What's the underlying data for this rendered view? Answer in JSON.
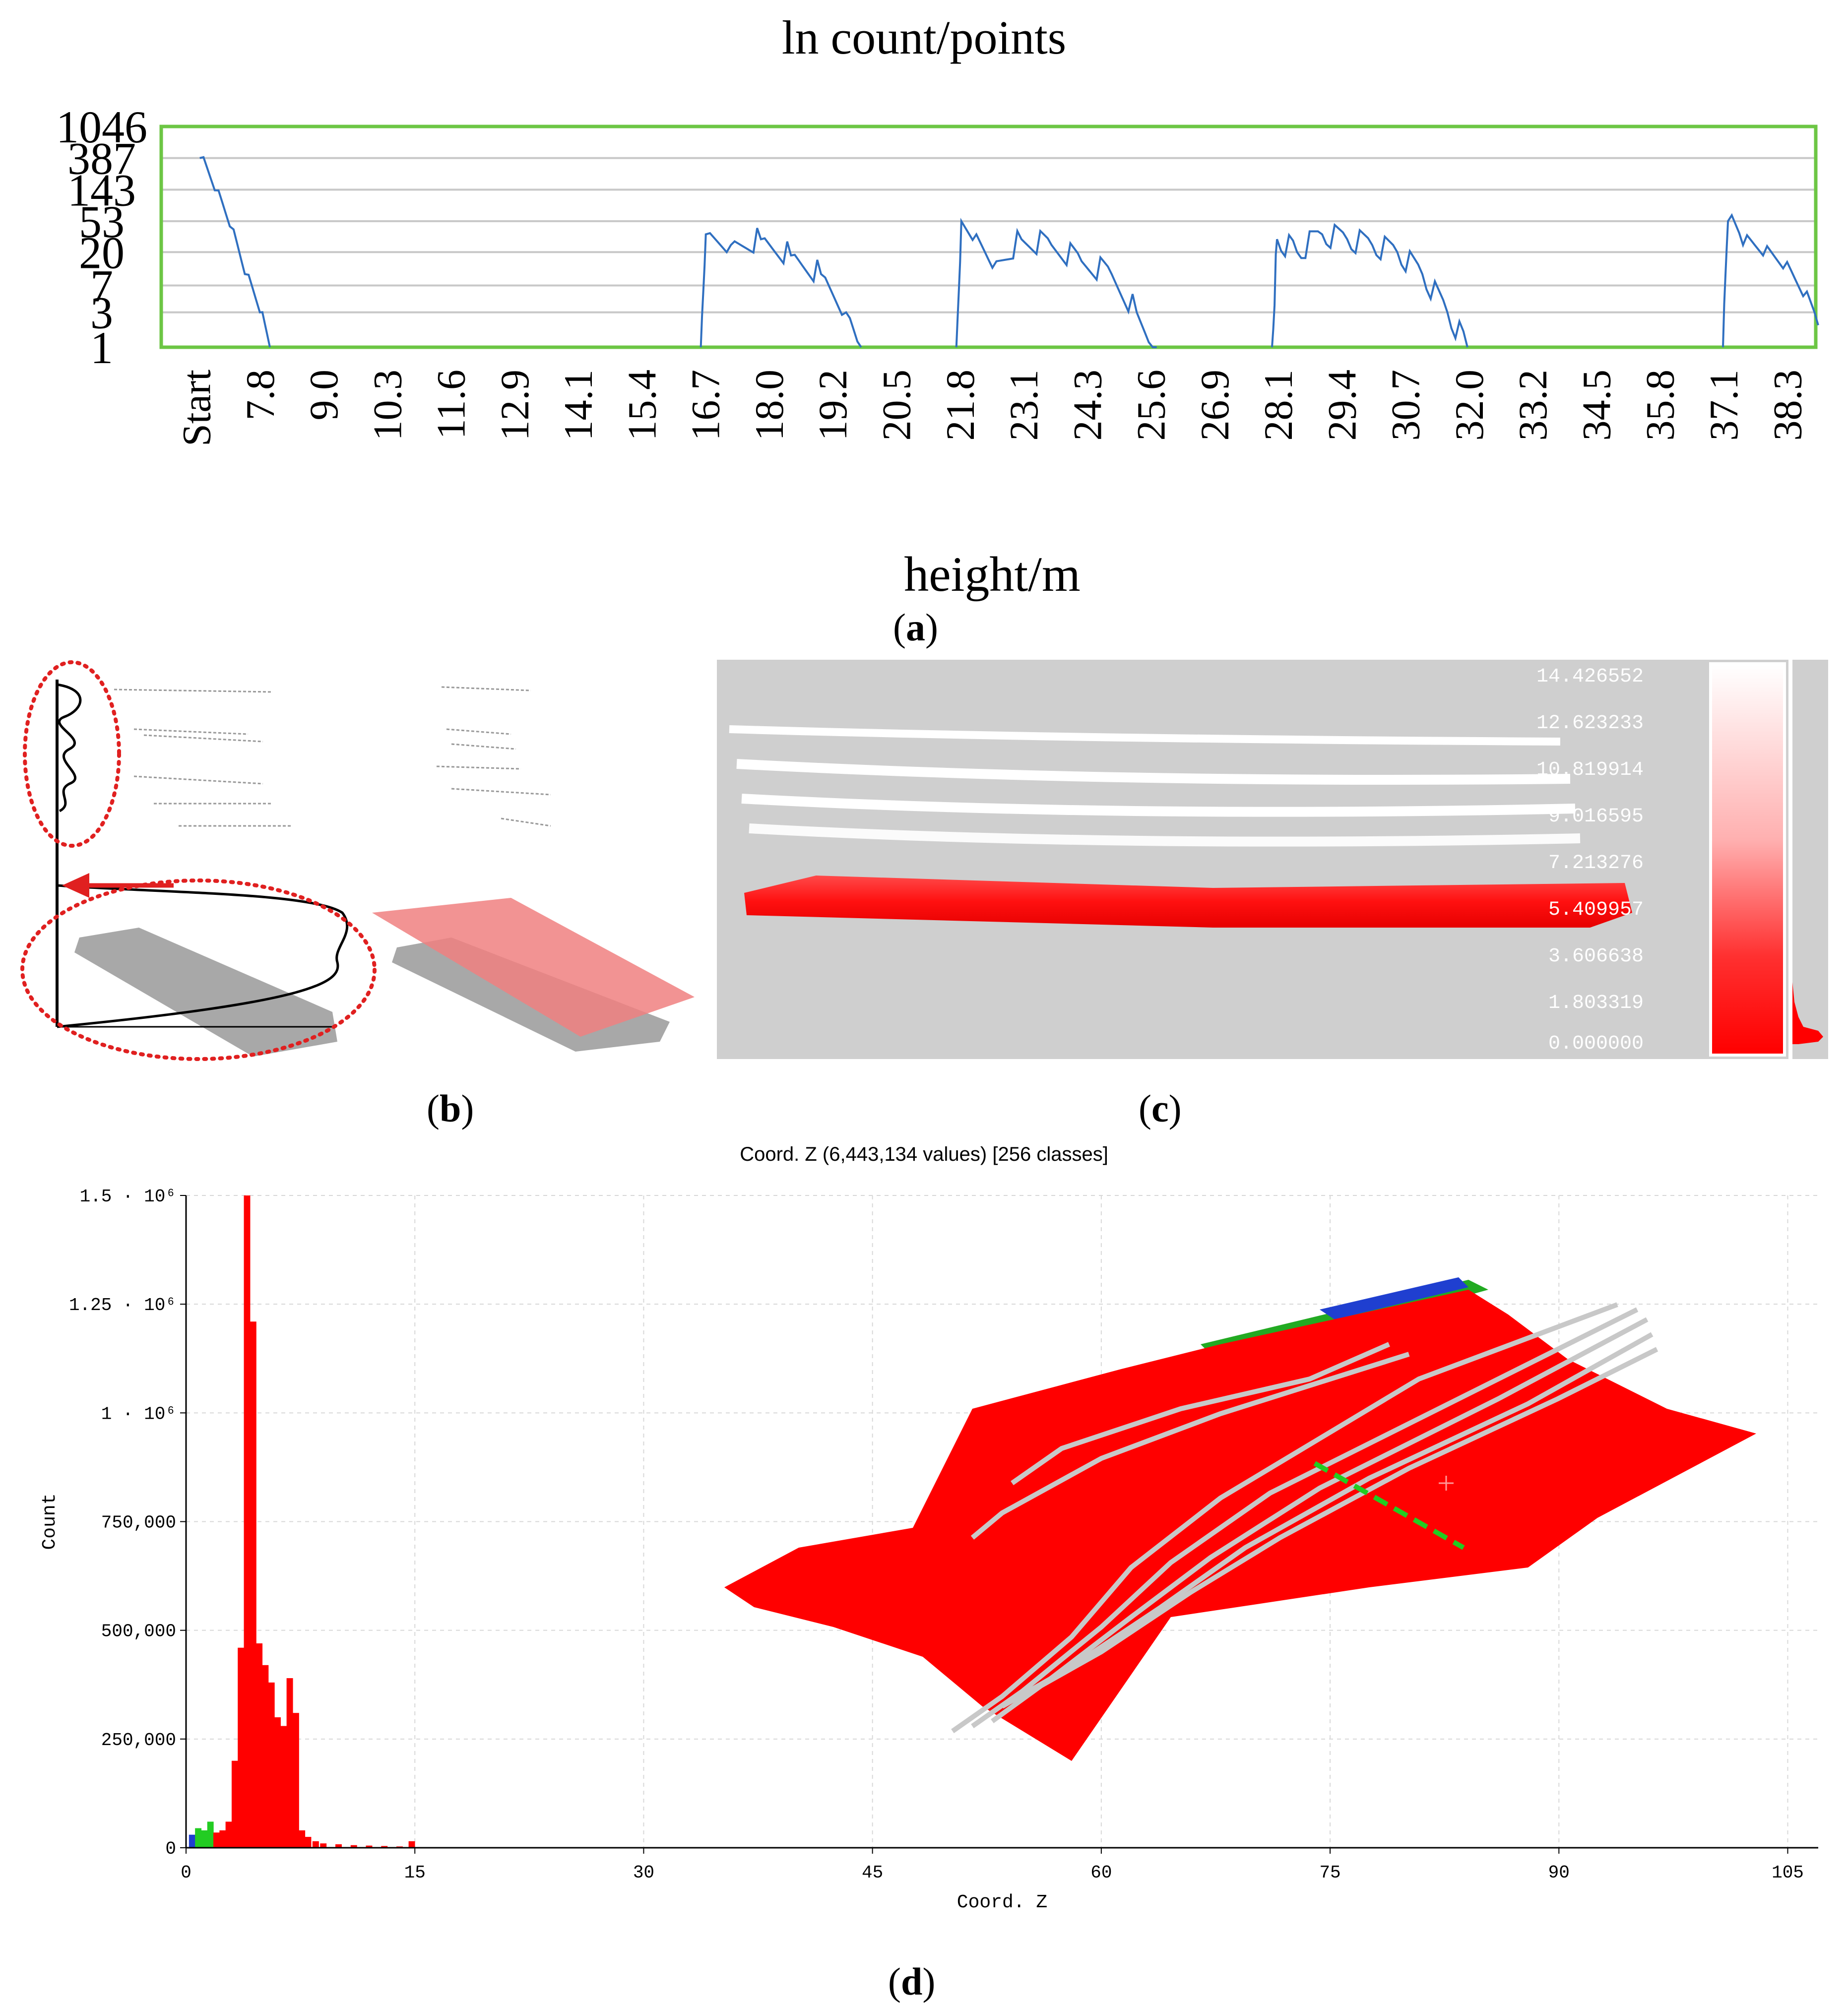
{
  "panel_a": {
    "title": "ln count/points",
    "xlabel": "height/m",
    "caption_letter": "a",
    "y_ticks": [
      "1046",
      "387",
      "143",
      "53",
      "20",
      "7",
      "3",
      "1"
    ],
    "x_ticks": [
      "Start",
      "7.8",
      "9.0",
      "10.3",
      "11.6",
      "12.9",
      "14.1",
      "15.4",
      "16.7",
      "18.0",
      "19.2",
      "20.5",
      "21.8",
      "23.1",
      "24.3",
      "25.6",
      "26.9",
      "28.1",
      "29.4",
      "30.7",
      "32.0",
      "33.2",
      "34.5",
      "35.8",
      "37.1",
      "38.3"
    ],
    "colors": {
      "line": "#2f6fc0",
      "frame": "#6cc644",
      "grid": "#c8c8c8"
    }
  },
  "panel_b": {
    "caption_letter": "b",
    "colors": {
      "highlight": "#e02020",
      "plane": "#f08080",
      "cloud": "#a8a8a8"
    }
  },
  "panel_c": {
    "caption_letter": "c",
    "scale_values": [
      "14.426552",
      "12.623233",
      "10.819914",
      "9.016595",
      "7.213276",
      "5.409957",
      "3.606638",
      "1.803319",
      "0.000000"
    ],
    "colors": {
      "background": "#cfcfcf",
      "points_low": "#ff1010",
      "points_high": "#ffffff"
    }
  },
  "panel_d": {
    "caption_letter": "d",
    "title": "Coord. Z (6,443,134 values)  [256 classes]",
    "xlabel": "Coord. Z",
    "ylabel": "Count",
    "x_ticks": [
      "0",
      "15",
      "30",
      "45",
      "60",
      "75",
      "90",
      "105"
    ],
    "y_ticks": [
      "0",
      "250,000",
      "500,000",
      "750,000",
      "1 · 10⁶",
      "1.25 · 10⁶",
      "1.5 · 10⁶"
    ],
    "colors": {
      "bars": "#ff0000",
      "low_blue": "#1f3fd0",
      "low_green": "#22cc22",
      "cloud": "#ff0000",
      "wires": "#c8c8c8"
    }
  },
  "chart_data": [
    {
      "type": "line",
      "title": "ln count/points",
      "xlabel": "height/m",
      "ylabel": "",
      "y_scale": "ln",
      "y_ticks": [
        1046,
        387,
        143,
        53,
        20,
        7,
        3,
        1
      ],
      "x_tick_labels": [
        "Start",
        "7.8",
        "9.0",
        "10.3",
        "11.6",
        "12.9",
        "14.1",
        "15.4",
        "16.7",
        "18.0",
        "19.2",
        "20.5",
        "21.8",
        "23.1",
        "24.3",
        "25.6",
        "26.9",
        "28.1",
        "29.4",
        "30.7",
        "32.0",
        "33.2",
        "34.5",
        "35.8",
        "37.1",
        "38.3"
      ],
      "series": [
        {
          "name": "ln count",
          "segments": [
            {
              "x": [
                6.6,
                6.9,
                7.2,
                7.5,
                7.8,
                8.0
              ],
              "y": [
                387,
                140,
                45,
                10,
                3,
                1
              ]
            },
            {
              "x": [
                16.6,
                16.7,
                17.2,
                17.8,
                18.4,
                19.0,
                19.5,
                19.8
              ],
              "y": [
                1,
                35,
                25,
                30,
                18,
                10,
                3,
                1
              ]
            },
            {
              "x": [
                21.7,
                21.8,
                22.1,
                22.5,
                23.0,
                23.6,
                24.2,
                24.8,
                25.3,
                25.7
              ],
              "y": [
                1,
                53,
                35,
                15,
                30,
                25,
                15,
                10,
                3,
                1
              ]
            },
            {
              "x": [
                28.0,
                28.1,
                28.5,
                29.0,
                29.5,
                30.0,
                30.5,
                31.0,
                31.5,
                31.9
              ],
              "y": [
                1,
                30,
                20,
                35,
                30,
                25,
                20,
                10,
                3,
                1
              ]
            },
            {
              "x": [
                37.0,
                37.1,
                37.4,
                37.8,
                38.2,
                38.6,
                38.9
              ],
              "y": [
                1,
                53,
                25,
                18,
                12,
                5,
                2
              ]
            }
          ]
        }
      ]
    },
    {
      "type": "bar",
      "title": "Coord. Z (6,443,134 values)  [256 classes]",
      "xlabel": "Coord. Z",
      "ylabel": "Count",
      "xlim": [
        0,
        107
      ],
      "ylim": [
        0,
        1500000
      ],
      "x": [
        0.4,
        0.8,
        1.2,
        1.6,
        2.0,
        2.4,
        2.8,
        3.2,
        3.6,
        4.0,
        4.4,
        4.8,
        5.2,
        5.6,
        6.0,
        6.4,
        6.8,
        7.2,
        7.6,
        8.0,
        8.5,
        9.0,
        10.0,
        11.0,
        12.0,
        13.0,
        14.0,
        14.8
      ],
      "values": [
        30000,
        45000,
        40000,
        60000,
        35000,
        40000,
        60000,
        200000,
        460000,
        1500000,
        1210000,
        470000,
        420000,
        380000,
        300000,
        280000,
        390000,
        310000,
        40000,
        25000,
        15000,
        10000,
        8000,
        6000,
        5000,
        4000,
        3000,
        15000
      ]
    }
  ]
}
